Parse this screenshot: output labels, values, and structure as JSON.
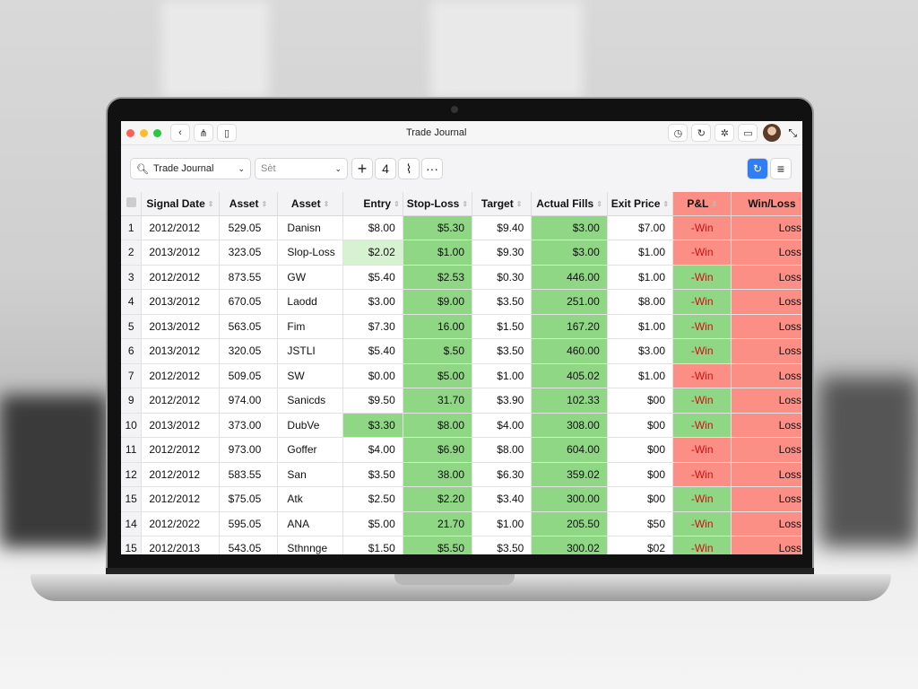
{
  "window": {
    "title": "Trade Journal"
  },
  "toolbar": {
    "sheet_select": "Trade Journal",
    "filter_select": "Sèt",
    "add_label": "+",
    "count_label": "4",
    "more_label": "···"
  },
  "colors": {
    "positive": "#8fd685",
    "negative": "#fb8f86",
    "highlight": "#d6f2d0",
    "accent": "#2f7ef7"
  },
  "table": {
    "columns": [
      "Signal Date",
      "Asset",
      "Asset",
      "Entry",
      "Stop-Loss",
      "Target",
      "Actual Fills",
      "Exit Price",
      "P&L",
      "Win/Loss"
    ],
    "rows": [
      {
        "n": "1",
        "date": "2012/2012",
        "a1": "529.05",
        "a2": "Danisn",
        "entry": "$8.00",
        "stop": "$5.30",
        "target": "$9.40",
        "fills": "$3.00",
        "exit": "$7.00",
        "pl": "-Win",
        "wl": "Loss",
        "pl_status": "negative",
        "entry_hl": ""
      },
      {
        "n": "2",
        "date": "2013/2012",
        "a1": "323.05",
        "a2": "Slop-Loss",
        "entry": "$2.02",
        "stop": "$1.00",
        "target": "$9.30",
        "fills": "$3.00",
        "exit": "$1.00",
        "pl": "-Win",
        "wl": "Loss",
        "pl_status": "negative",
        "entry_hl": "light"
      },
      {
        "n": "3",
        "date": "2012/2012",
        "a1": "873.55",
        "a2": "GW",
        "entry": "$5.40",
        "stop": "$2.53",
        "target": "$0.30",
        "fills": "446.00",
        "exit": "$1.00",
        "pl": "-Win",
        "wl": "Loss",
        "pl_status": "positive",
        "entry_hl": ""
      },
      {
        "n": "4",
        "date": "2013/2012",
        "a1": "670.05",
        "a2": "Laodd",
        "entry": "$3.00",
        "stop": "$9.00",
        "target": "$3.50",
        "fills": "251.00",
        "exit": "$8.00",
        "pl": "-Win",
        "wl": "Loss",
        "pl_status": "positive",
        "entry_hl": ""
      },
      {
        "n": "5",
        "date": "2013/2012",
        "a1": "563.05",
        "a2": "Fim",
        "entry": "$7.30",
        "stop": "16.00",
        "target": "$1.50",
        "fills": "167.20",
        "exit": "$1.00",
        "pl": "-Win",
        "wl": "Loss",
        "pl_status": "positive",
        "entry_hl": ""
      },
      {
        "n": "6",
        "date": "2013/2012",
        "a1": "320.05",
        "a2": "JSTLI",
        "entry": "$5.40",
        "stop": "$.50",
        "target": "$3.50",
        "fills": "460.00",
        "exit": "$3.00",
        "pl": "-Win",
        "wl": "Loss",
        "pl_status": "positive",
        "entry_hl": ""
      },
      {
        "n": "7",
        "date": "2012/2012",
        "a1": "509.05",
        "a2": "SW",
        "entry": "$0.00",
        "stop": "$5.00",
        "target": "$1.00",
        "fills": "405.02",
        "exit": "$1.00",
        "pl": "-Win",
        "wl": "Loss",
        "pl_status": "negative",
        "entry_hl": ""
      },
      {
        "n": "9",
        "date": "2012/2012",
        "a1": "974.00",
        "a2": "Sanicds",
        "entry": "$9.50",
        "stop": "31.70",
        "target": "$3.90",
        "fills": "102.33",
        "exit": "$00",
        "pl": "-Win",
        "wl": "Loss",
        "pl_status": "positive",
        "entry_hl": ""
      },
      {
        "n": "10",
        "date": "2013/2012",
        "a1": "373.00",
        "a2": "DubVe",
        "entry": "$3.30",
        "stop": "$8.00",
        "target": "$4.00",
        "fills": "308.00",
        "exit": "$00",
        "pl": "-Win",
        "wl": "Loss",
        "pl_status": "positive",
        "entry_hl": "strong"
      },
      {
        "n": "11",
        "date": "2012/2012",
        "a1": "973.00",
        "a2": "Goffer",
        "entry": "$4.00",
        "stop": "$6.90",
        "target": "$8.00",
        "fills": "604.00",
        "exit": "$00",
        "pl": "-Win",
        "wl": "Loss",
        "pl_status": "negative",
        "entry_hl": ""
      },
      {
        "n": "12",
        "date": "2012/2012",
        "a1": "583.55",
        "a2": "San",
        "entry": "$3.50",
        "stop": "38.00",
        "target": "$6.30",
        "fills": "359.02",
        "exit": "$00",
        "pl": "-Win",
        "wl": "Loss",
        "pl_status": "negative",
        "entry_hl": ""
      },
      {
        "n": "15",
        "date": "2012/2012",
        "a1": "$75.05",
        "a2": "Atk",
        "entry": "$2.50",
        "stop": "$2.20",
        "target": "$3.40",
        "fills": "300.00",
        "exit": "$00",
        "pl": "-Win",
        "wl": "Loss",
        "pl_status": "positive",
        "entry_hl": ""
      },
      {
        "n": "14",
        "date": "2012/2022",
        "a1": "595.05",
        "a2": "ANA",
        "entry": "$5.00",
        "stop": "21.70",
        "target": "$1.00",
        "fills": "205.50",
        "exit": "$50",
        "pl": "-Win",
        "wl": "Loss",
        "pl_status": "positive",
        "entry_hl": ""
      },
      {
        "n": "15",
        "date": "2012/2013",
        "a1": "543.05",
        "a2": "Sthnnge",
        "entry": "$1.50",
        "stop": "$5.50",
        "target": "$3.50",
        "fills": "300.02",
        "exit": "$02",
        "pl": "-Win",
        "wl": "Loss",
        "pl_status": "positive",
        "entry_hl": ""
      }
    ]
  }
}
